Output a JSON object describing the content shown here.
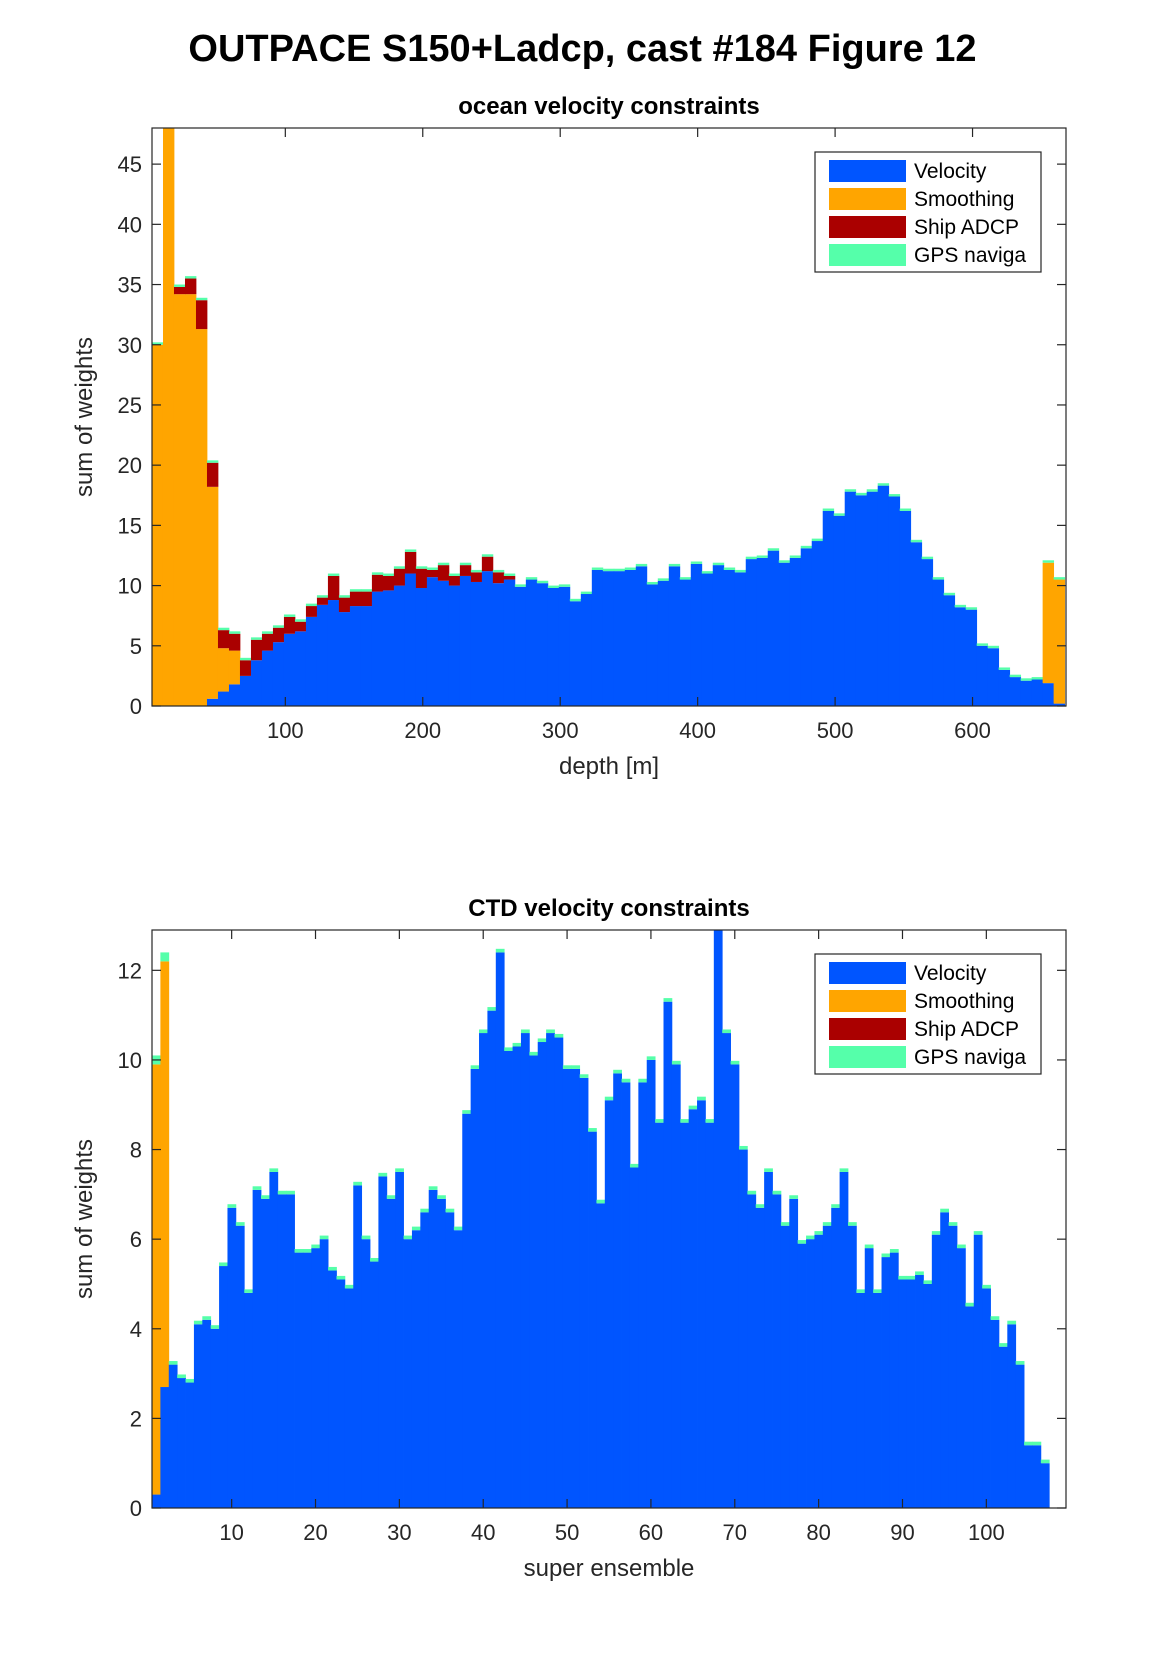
{
  "figure": {
    "title": "OUTPACE S150+Ladcp, cast #184  Figure 12"
  },
  "colors": {
    "Velocity": "#0055ff",
    "Smoothing": "#ffa500",
    "Ship ADCP": "#aa0000",
    "GPS naviga": "#55ffaa"
  },
  "chart_data": [
    {
      "type": "bar",
      "stacked": true,
      "title": "ocean velocity constraints",
      "xlabel": "depth [m]",
      "ylabel": "sum of weights",
      "xlim": [
        3,
        668
      ],
      "ylim": [
        0,
        48
      ],
      "xticks": [
        100,
        200,
        300,
        400,
        500,
        600
      ],
      "yticks": [
        0,
        5,
        10,
        15,
        20,
        25,
        30,
        35,
        40,
        45
      ],
      "bin_width": 8,
      "legend_position": "top-right",
      "x": [
        7,
        15,
        23,
        31,
        39,
        47,
        55,
        63,
        71,
        79,
        87,
        95,
        103,
        111,
        119,
        127,
        135,
        143,
        151,
        159,
        167,
        175,
        183,
        191,
        199,
        207,
        215,
        223,
        231,
        239,
        247,
        255,
        263,
        271,
        279,
        287,
        295,
        303,
        311,
        319,
        327,
        335,
        343,
        351,
        359,
        367,
        375,
        383,
        391,
        399,
        407,
        415,
        423,
        431,
        439,
        447,
        455,
        463,
        471,
        479,
        487,
        495,
        503,
        511,
        519,
        527,
        535,
        543,
        551,
        559,
        567,
        575,
        583,
        591,
        599,
        607,
        615,
        623,
        631,
        639,
        647,
        655,
        663
      ],
      "series": [
        {
          "name": "Velocity",
          "values": [
            0,
            0,
            0,
            0,
            0,
            0.6,
            1.2,
            1.8,
            2.5,
            3.8,
            4.6,
            5.3,
            6,
            6.2,
            7.4,
            8.4,
            8.8,
            7.8,
            8.3,
            8.3,
            9.5,
            9.6,
            10,
            11,
            9.8,
            10.7,
            10.4,
            10,
            10.8,
            10.3,
            11.2,
            10.2,
            10.5,
            9.9,
            10.5,
            10.2,
            9.8,
            9.9,
            8.7,
            9.3,
            11.3,
            11.2,
            11.2,
            11.3,
            11.6,
            10.1,
            10.4,
            11.6,
            10.5,
            11.8,
            11.0,
            11.7,
            11.3,
            11.1,
            12.2,
            12.3,
            12.9,
            11.9,
            12.3,
            13.1,
            13.7,
            16.2,
            15.8,
            17.8,
            17.5,
            17.8,
            18.3,
            17.4,
            16.2,
            13.6,
            12.2,
            10.5,
            9.2,
            8.2,
            8.0,
            5.0,
            4.8,
            3.0,
            2.4,
            2.1,
            2.2,
            1.9,
            0.2
          ]
        },
        {
          "name": "Smoothing",
          "values": [
            30,
            48,
            34.2,
            34.2,
            31.3,
            17.6,
            3.6,
            2.8,
            0,
            0,
            0,
            0,
            0,
            0,
            0,
            0,
            0,
            0,
            0,
            0,
            0,
            0,
            0,
            0,
            0,
            0,
            0,
            0,
            0,
            0,
            0,
            0,
            0,
            0,
            0,
            0,
            0,
            0,
            0,
            0,
            0,
            0,
            0,
            0,
            0,
            0,
            0,
            0,
            0,
            0,
            0,
            0,
            0,
            0,
            0,
            0,
            0,
            0,
            0,
            0,
            0,
            0,
            0,
            0,
            0,
            0,
            0,
            0,
            0,
            0,
            0,
            0,
            0,
            0,
            0,
            0,
            0,
            0,
            0,
            0,
            0,
            10,
            10.3
          ]
        },
        {
          "name": "Ship ADCP",
          "values": [
            0,
            0,
            0.6,
            1.3,
            2.4,
            2.0,
            1.5,
            1.4,
            1.3,
            1.7,
            1.4,
            1.2,
            1.4,
            0.8,
            0.9,
            0.6,
            2.0,
            1.2,
            1.2,
            1.2,
            1.4,
            1.2,
            1.4,
            1.8,
            1.6,
            0.6,
            1.3,
            0.8,
            0.9,
            0.8,
            1.2,
            0.9,
            0.3,
            0,
            0,
            0,
            0,
            0,
            0,
            0,
            0,
            0,
            0,
            0,
            0,
            0,
            0,
            0,
            0,
            0,
            0,
            0,
            0,
            0,
            0,
            0,
            0,
            0,
            0,
            0,
            0,
            0,
            0,
            0,
            0,
            0,
            0,
            0,
            0,
            0,
            0,
            0,
            0,
            0,
            0,
            0,
            0,
            0,
            0,
            0,
            0,
            0,
            0
          ]
        },
        {
          "name": "GPS naviga",
          "values": [
            0.2,
            0.2,
            0.2,
            0.2,
            0.2,
            0.2,
            0.2,
            0.2,
            0.2,
            0.2,
            0.2,
            0.2,
            0.2,
            0.2,
            0.2,
            0.2,
            0.2,
            0.2,
            0.2,
            0.2,
            0.2,
            0.2,
            0.2,
            0.2,
            0.2,
            0.2,
            0.2,
            0.2,
            0.2,
            0.2,
            0.2,
            0.2,
            0.2,
            0.2,
            0.2,
            0.2,
            0.2,
            0.2,
            0.2,
            0.2,
            0.2,
            0.2,
            0.2,
            0.2,
            0.2,
            0.2,
            0.2,
            0.2,
            0.2,
            0.2,
            0.2,
            0.2,
            0.2,
            0.2,
            0.2,
            0.2,
            0.2,
            0.2,
            0.2,
            0.2,
            0.2,
            0.2,
            0.2,
            0.2,
            0.2,
            0.2,
            0.2,
            0.2,
            0.2,
            0.2,
            0.2,
            0.2,
            0.2,
            0.2,
            0.2,
            0.2,
            0.2,
            0.2,
            0.2,
            0.2,
            0.2,
            0.2,
            0.2
          ]
        }
      ]
    },
    {
      "type": "bar",
      "stacked": true,
      "title": "CTD velocity constraints",
      "xlabel": "super ensemble",
      "ylabel": "sum of weights",
      "xlim": [
        0.5,
        109.5
      ],
      "ylim": [
        0,
        12.9
      ],
      "xticks": [
        10,
        20,
        30,
        40,
        50,
        60,
        70,
        80,
        90,
        100
      ],
      "yticks": [
        0,
        2,
        4,
        6,
        8,
        10,
        12
      ],
      "bin_width": 1,
      "legend_position": "top-right",
      "x_start": 1,
      "series": [
        {
          "name": "Velocity",
          "values": [
            0.3,
            2.7,
            3.2,
            2.9,
            2.8,
            4.1,
            4.2,
            4.0,
            5.4,
            6.7,
            6.3,
            4.8,
            7.1,
            6.9,
            7.5,
            7.0,
            7.0,
            5.7,
            5.7,
            5.8,
            6.0,
            5.3,
            5.1,
            4.9,
            7.2,
            6.0,
            5.5,
            7.4,
            6.9,
            7.5,
            6.0,
            6.2,
            6.6,
            7.1,
            6.9,
            6.6,
            6.2,
            8.8,
            9.8,
            10.6,
            11.1,
            12.4,
            10.2,
            10.3,
            10.6,
            10.1,
            10.4,
            10.6,
            10.5,
            9.8,
            9.8,
            9.6,
            8.4,
            6.8,
            9.1,
            9.7,
            9.5,
            7.6,
            9.5,
            10.0,
            8.6,
            11.3,
            9.9,
            8.6,
            8.9,
            9.1,
            8.6,
            12.9,
            10.6,
            9.9,
            8.0,
            7.0,
            6.7,
            7.5,
            7.0,
            6.3,
            6.9,
            5.9,
            6.0,
            6.1,
            6.3,
            6.7,
            7.5,
            6.3,
            4.8,
            5.8,
            4.8,
            5.6,
            5.7,
            5.1,
            5.1,
            5.2,
            5.0,
            6.1,
            6.6,
            6.3,
            5.8,
            4.5,
            6.1,
            4.9,
            4.2,
            3.6,
            4.1,
            3.2,
            1.4,
            1.4,
            1.0
          ]
        },
        {
          "name": "Smoothing",
          "values": [
            9.6,
            9.5,
            0,
            0,
            0,
            0,
            0,
            0,
            0,
            0,
            0,
            0,
            0,
            0,
            0,
            0,
            0,
            0,
            0,
            0,
            0,
            0,
            0,
            0,
            0,
            0,
            0,
            0,
            0,
            0,
            0,
            0,
            0,
            0,
            0,
            0,
            0,
            0,
            0,
            0,
            0,
            0,
            0,
            0,
            0,
            0,
            0,
            0,
            0,
            0,
            0,
            0,
            0,
            0,
            0,
            0,
            0,
            0,
            0,
            0,
            0,
            0,
            0,
            0,
            0,
            0,
            0,
            0,
            0,
            0,
            0,
            0,
            0,
            0,
            0,
            0,
            0,
            0,
            0,
            0,
            0,
            0,
            0,
            0,
            0,
            0,
            0,
            0,
            0,
            0,
            0,
            0,
            0,
            0,
            0,
            0,
            0,
            0,
            0,
            0,
            0,
            0,
            0,
            0,
            0,
            0,
            0
          ]
        },
        {
          "name": "Ship ADCP",
          "values": [
            0,
            0,
            0,
            0,
            0,
            0,
            0,
            0,
            0,
            0,
            0,
            0,
            0,
            0,
            0,
            0,
            0,
            0,
            0,
            0,
            0,
            0,
            0,
            0,
            0,
            0,
            0,
            0,
            0,
            0,
            0,
            0,
            0,
            0,
            0,
            0,
            0,
            0,
            0,
            0,
            0,
            0,
            0,
            0,
            0,
            0,
            0,
            0,
            0,
            0,
            0,
            0,
            0,
            0,
            0,
            0,
            0,
            0,
            0,
            0,
            0,
            0,
            0,
            0,
            0,
            0,
            0,
            0,
            0,
            0,
            0,
            0,
            0,
            0,
            0,
            0,
            0,
            0,
            0,
            0,
            0,
            0,
            0,
            0,
            0,
            0,
            0,
            0,
            0,
            0,
            0,
            0,
            0,
            0,
            0,
            0,
            0,
            0,
            0,
            0,
            0,
            0,
            0,
            0,
            0,
            0,
            0
          ]
        },
        {
          "name": "GPS naviga",
          "values": [
            0.2,
            0.2,
            0.08,
            0.08,
            0.08,
            0.08,
            0.08,
            0.08,
            0.08,
            0.08,
            0.08,
            0.08,
            0.08,
            0.08,
            0.08,
            0.08,
            0.08,
            0.08,
            0.08,
            0.08,
            0.08,
            0.08,
            0.08,
            0.08,
            0.08,
            0.08,
            0.08,
            0.08,
            0.08,
            0.08,
            0.08,
            0.08,
            0.08,
            0.08,
            0.08,
            0.08,
            0.08,
            0.08,
            0.08,
            0.08,
            0.08,
            0.08,
            0.08,
            0.08,
            0.08,
            0.08,
            0.08,
            0.08,
            0.08,
            0.08,
            0.08,
            0.08,
            0.08,
            0.08,
            0.08,
            0.08,
            0.08,
            0.08,
            0.08,
            0.08,
            0.08,
            0.08,
            0.08,
            0.08,
            0.08,
            0.08,
            0.08,
            0.08,
            0.08,
            0.08,
            0.08,
            0.08,
            0.08,
            0.08,
            0.08,
            0.08,
            0.08,
            0.08,
            0.08,
            0.08,
            0.08,
            0.08,
            0.08,
            0.08,
            0.08,
            0.08,
            0.08,
            0.08,
            0.08,
            0.08,
            0.08,
            0.08,
            0.08,
            0.08,
            0.08,
            0.08,
            0.08,
            0.08,
            0.08,
            0.08,
            0.08,
            0.08,
            0.08,
            0.08,
            0.08,
            0.08,
            0.08
          ]
        }
      ]
    }
  ]
}
